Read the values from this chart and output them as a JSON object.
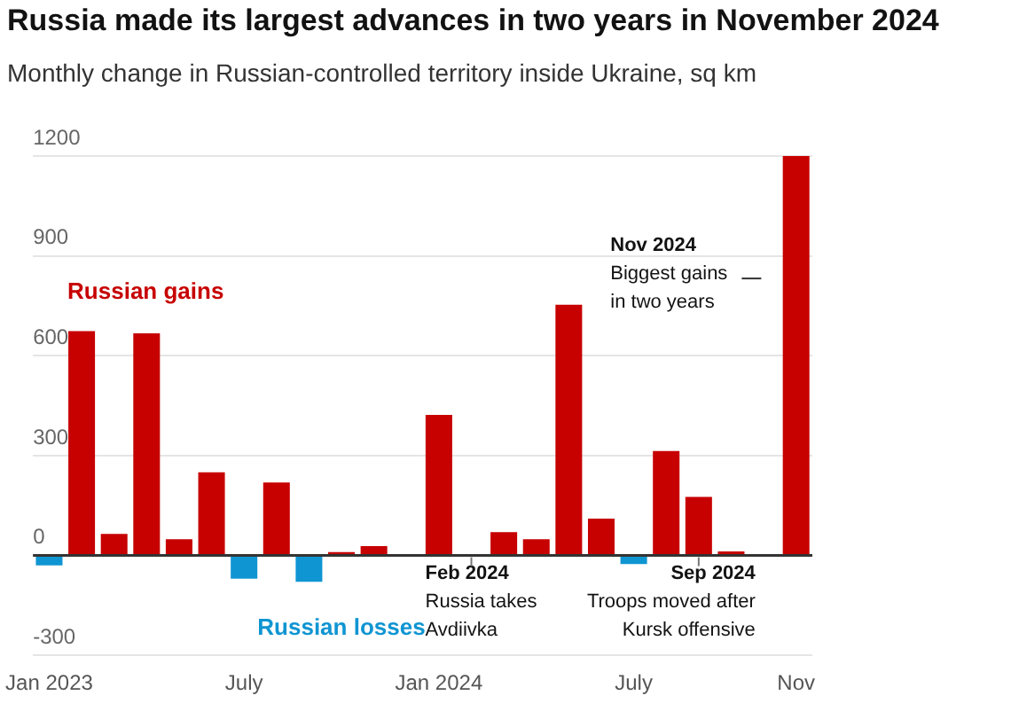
{
  "chart_data": {
    "type": "bar",
    "title": "Russia made its largest advances in two years in November 2024",
    "subtitle": "Monthly change in Russian-controlled territory inside Ukraine, sq km",
    "categories": [
      "Jan 2023",
      null,
      null,
      null,
      null,
      null,
      "July",
      null,
      null,
      null,
      null,
      null,
      "Jan 2024",
      null,
      null,
      null,
      null,
      null,
      "July",
      null,
      null,
      null,
      null,
      "Nov"
    ],
    "series": [
      {
        "name": "Russian gains",
        "color": "#c70000",
        "values": [
          null,
          674,
          65,
          667,
          49,
          250,
          null,
          219,
          null,
          10,
          28,
          null,
          422,
          null,
          70,
          49,
          753,
          111,
          null,
          314,
          176,
          12,
          null,
          1200
        ]
      },
      {
        "name": "Russian losses",
        "color": "#0f95d2",
        "values": [
          -30,
          null,
          null,
          null,
          null,
          null,
          -70,
          null,
          -79,
          null,
          null,
          null,
          null,
          null,
          null,
          null,
          null,
          null,
          -26,
          null,
          null,
          null,
          null,
          null
        ]
      }
    ],
    "stacked": true,
    "ylim": [
      -300,
      1200
    ],
    "yticks": [
      -300,
      0,
      300,
      600,
      900,
      1200
    ],
    "grid": "y",
    "legend": false,
    "annotations": [
      "Nov 2024\nBiggest gains\nin two years",
      "Feb 2024\nRussia takes\nAvdiivka",
      "Sep 2024\nTroops moved after\nKursk offensive"
    ]
  }
}
